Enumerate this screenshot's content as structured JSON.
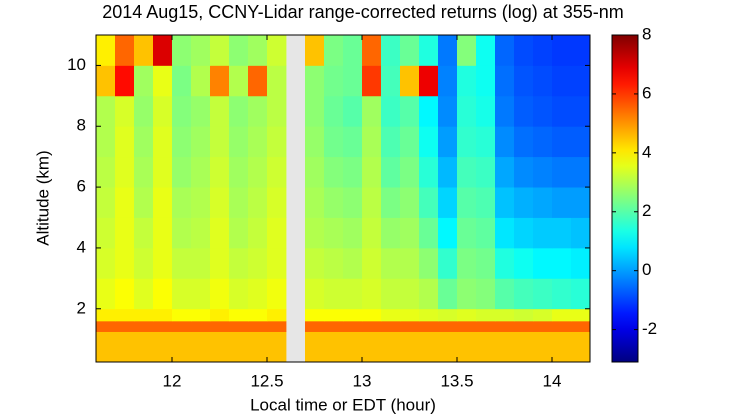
{
  "chart_data": {
    "type": "heatmap",
    "title": "2014 Aug15, CCNY-Lidar range-corrected returns (log) at 355-nm",
    "x_label": "Local time or EDT (hour)",
    "y_label": "Altitude (km)",
    "colormap": "jet",
    "xlim": [
      11.6,
      14.2
    ],
    "xticks": [
      12,
      12.5,
      13,
      13.5,
      14
    ],
    "ylim": [
      0.25,
      11
    ],
    "yticks": [
      2,
      4,
      6,
      8,
      10
    ],
    "clim": [
      -3.1,
      8
    ],
    "cticks": [
      -2,
      0,
      2,
      4,
      6,
      8
    ],
    "x_bins": [
      11.6,
      11.7,
      11.8,
      11.9,
      12.0,
      12.1,
      12.2,
      12.3,
      12.4,
      12.5,
      12.6,
      12.7,
      12.8,
      12.9,
      13.0,
      13.1,
      13.2,
      13.3,
      13.4,
      13.5,
      13.6,
      13.7,
      13.8,
      13.9,
      14.0,
      14.1,
      14.2
    ],
    "y_bins": [
      0.25,
      1.25,
      1.6,
      2,
      3,
      4,
      5,
      6,
      7,
      8,
      9,
      10,
      11
    ],
    "z": [
      [
        4.5,
        4.5,
        4.5,
        4.5,
        4.5,
        4.5,
        4.5,
        4.5,
        4.5,
        4.5,
        null,
        4.5,
        4.5,
        4.5,
        4.5,
        4.5,
        4.5,
        4.5,
        4.5,
        4.5,
        4.5,
        4.5,
        4.5,
        4.5,
        4.5,
        4.5
      ],
      [
        5.5,
        5.5,
        5.5,
        5.5,
        5.5,
        5.5,
        5.5,
        5.5,
        5.5,
        5.5,
        null,
        5.5,
        5.5,
        5.5,
        5.5,
        5.5,
        5.5,
        5.5,
        5.5,
        5.5,
        5.5,
        5.5,
        5.5,
        5.5,
        5.5,
        5.5
      ],
      [
        4,
        4,
        4,
        4,
        3.8,
        3.8,
        4,
        3.8,
        3.8,
        4,
        null,
        3.8,
        3.8,
        3.8,
        3.8,
        3.6,
        3.6,
        3.5,
        3.4,
        3.5,
        3.4,
        3.4,
        3.3,
        3.4,
        3.6,
        3.6
      ],
      [
        3.6,
        3.8,
        3.5,
        3.8,
        3.4,
        3.4,
        3.7,
        3.4,
        3.5,
        3.7,
        null,
        3.4,
        3.3,
        3.3,
        3.4,
        3.2,
        3.2,
        3,
        2.2,
        2.6,
        2.5,
        2,
        1.8,
        1.7,
        1.6,
        1.5
      ],
      [
        3.4,
        3.6,
        3.3,
        3.6,
        3.2,
        3.2,
        3.5,
        3.2,
        3.3,
        3.5,
        null,
        3.2,
        3.1,
        3,
        3.3,
        3,
        3,
        2.6,
        1.6,
        2.4,
        2.3,
        1.4,
        1.2,
        1,
        1,
        0.9
      ],
      [
        3.3,
        3.6,
        3.2,
        3.6,
        3,
        3.1,
        3.5,
        3,
        3.2,
        3.5,
        null,
        3,
        2.9,
        2.8,
        3.2,
        2.7,
        2.8,
        2.2,
        1,
        2.2,
        2.1,
        0.8,
        0.6,
        0.5,
        0.5,
        0.4
      ],
      [
        3.2,
        3.6,
        3,
        3.6,
        2.9,
        3,
        3.4,
        2.9,
        3.1,
        3.4,
        null,
        2.9,
        2.7,
        2.6,
        3.1,
        2.4,
        2.6,
        1.8,
        0.6,
        2,
        1.9,
        0.4,
        0.2,
        0.1,
        0,
        0
      ],
      [
        3.1,
        3.5,
        2.9,
        3.5,
        2.7,
        2.9,
        3.3,
        2.8,
        3,
        3.3,
        null,
        2.8,
        2.5,
        2.4,
        3,
        2.1,
        2.4,
        1.5,
        0.3,
        1.8,
        1.7,
        0.1,
        -0.2,
        -0.3,
        -0.4,
        -0.4
      ],
      [
        3,
        3.5,
        2.8,
        3.5,
        2.6,
        2.8,
        3.2,
        2.7,
        2.9,
        3.2,
        null,
        2.7,
        2.3,
        2.2,
        2.9,
        1.9,
        2.2,
        1.2,
        0,
        1.6,
        1.5,
        -0.2,
        -0.5,
        -0.6,
        -0.7,
        -0.7
      ],
      [
        3,
        3.4,
        2.7,
        3.4,
        2.5,
        2.7,
        3.2,
        2.6,
        2.8,
        3.1,
        null,
        2.6,
        2.2,
        2,
        2.8,
        1.7,
        2,
        1,
        -0.2,
        1.5,
        1.3,
        -0.4,
        -0.7,
        -0.8,
        -0.9,
        -0.9
      ],
      [
        4.5,
        6.5,
        2.8,
        3.6,
        2.4,
        3,
        5.2,
        3,
        5.5,
        3.1,
        null,
        2.6,
        2.3,
        2.2,
        6,
        1.8,
        4.5,
        6.8,
        -0.3,
        1.4,
        1.2,
        -0.5,
        -0.8,
        -0.9,
        -1,
        -1
      ],
      [
        4,
        5.5,
        4.5,
        7,
        2.6,
        2.8,
        3.2,
        2.6,
        2.8,
        3.3,
        null,
        4.5,
        2.4,
        2.2,
        5.5,
        1.7,
        2.2,
        1.4,
        -0.4,
        2.5,
        1.2,
        -0.6,
        -0.9,
        -1,
        -1.1,
        -1.1
      ]
    ]
  }
}
